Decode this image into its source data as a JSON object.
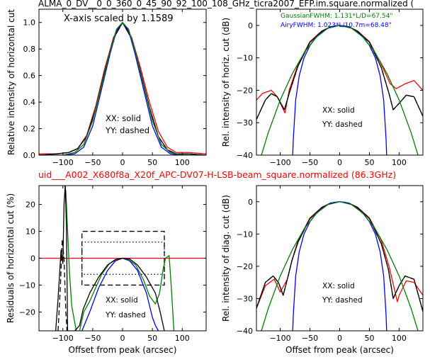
{
  "figure": {
    "top_title": "ALMA_0_DV__0_0_360_0_45_90_92_100_108_GHz_ticra2007_EFP.im.square.normalized (",
    "mid_title": "uid___A002_X680f8a_X20f_APC-DV07-H-LSB-beam_square.normalized (86.3GHz)",
    "mid_title_color": "#ff0000"
  },
  "colors": {
    "red": "#ff0000",
    "black": "#000000",
    "blue": "#0000ff",
    "green": "#008000"
  },
  "chart_data": [
    {
      "id": "p1",
      "type": "line",
      "xlim": [
        -140,
        140
      ],
      "ylim": [
        0,
        1.1
      ],
      "xticks": [
        -100,
        -50,
        0,
        50,
        100
      ],
      "xticklabels": [
        "−100",
        "−50",
        "0",
        "50",
        "100"
      ],
      "yticks": [
        0,
        0.2,
        0.4,
        0.6,
        0.8,
        1.0
      ],
      "yticklabels": [
        "0.0",
        "0.2",
        "0.4",
        "0.6",
        "0.8",
        "1.0"
      ],
      "xlabel": "",
      "ylabel": "Relative intensity of horizontal cut",
      "annotations": [
        "X-axis scaled by 1.1589",
        "XX: solid",
        "YY: dashed"
      ],
      "series": [
        {
          "color": "red",
          "style": "solid",
          "x": [
            -140,
            -110,
            -90,
            -75,
            -60,
            -45,
            -30,
            -15,
            0,
            15,
            30,
            45,
            60,
            75,
            90,
            110,
            140
          ],
          "y": [
            0.01,
            0.01,
            0.02,
            0.05,
            0.15,
            0.37,
            0.65,
            0.89,
            1.0,
            0.89,
            0.66,
            0.4,
            0.18,
            0.06,
            0.02,
            0.02,
            0.01
          ]
        },
        {
          "color": "black",
          "style": "solid",
          "x": [
            -140,
            -110,
            -90,
            -75,
            -60,
            -45,
            -30,
            -15,
            0,
            15,
            30,
            45,
            60,
            75,
            90,
            110,
            140
          ],
          "y": [
            0,
            0.01,
            0.02,
            0.05,
            0.14,
            0.35,
            0.63,
            0.88,
            1.0,
            0.88,
            0.63,
            0.36,
            0.14,
            0.04,
            0.01,
            0.01,
            0
          ]
        },
        {
          "color": "black",
          "style": "dashed",
          "x": [
            -140,
            -110,
            -90,
            -75,
            -60,
            -45,
            -30,
            -15,
            0,
            15,
            30,
            45,
            60,
            75,
            90,
            110,
            140
          ],
          "y": [
            0,
            0.01,
            0.02,
            0.05,
            0.14,
            0.35,
            0.63,
            0.88,
            1.0,
            0.88,
            0.63,
            0.36,
            0.14,
            0.04,
            0.01,
            0.01,
            0
          ]
        },
        {
          "color": "blue",
          "style": "solid",
          "x": [
            -140,
            -100,
            -80,
            -65,
            -50,
            -35,
            -20,
            -10,
            0,
            10,
            20,
            35,
            50,
            65,
            80,
            100,
            140
          ],
          "y": [
            0,
            0,
            0.01,
            0.06,
            0.22,
            0.5,
            0.78,
            0.94,
            1.0,
            0.94,
            0.78,
            0.5,
            0.22,
            0.06,
            0.01,
            0,
            0
          ]
        },
        {
          "color": "green",
          "style": "solid",
          "x": [
            -140,
            -100,
            -80,
            -65,
            -50,
            -35,
            -20,
            -10,
            0,
            10,
            20,
            35,
            50,
            65,
            80,
            100,
            140
          ],
          "y": [
            0,
            0,
            0.02,
            0.08,
            0.26,
            0.53,
            0.8,
            0.95,
            1.0,
            0.95,
            0.8,
            0.53,
            0.26,
            0.08,
            0.02,
            0,
            0
          ]
        }
      ]
    },
    {
      "id": "p2",
      "type": "line",
      "xlim": [
        -140,
        140
      ],
      "ylim": [
        -40,
        5
      ],
      "xticks": [
        -100,
        -50,
        0,
        50,
        100
      ],
      "xticklabels": [
        "−100",
        "−50",
        "0",
        "50",
        "100"
      ],
      "yticks": [
        -40,
        -30,
        -20,
        -10,
        0
      ],
      "yticklabels": [
        "−40",
        "−30",
        "−20",
        "−10",
        "0"
      ],
      "xlabel": "",
      "ylabel": "Rel. intensity of horiz. cut (dB)",
      "annotations": [
        "GaussianFWHM: 1.131*L/D=67.54\"",
        "AiryFWHM: 1.023*L/10.7m=68.48\"",
        "XX: solid",
        "YY: dashed"
      ],
      "annotation_colors": [
        "green",
        "blue",
        "black",
        "black"
      ],
      "series": [
        {
          "color": "red",
          "style": "solid",
          "x": [
            -140,
            -130,
            -115,
            -105,
            -92,
            -85,
            -70,
            -50,
            -30,
            -15,
            0,
            15,
            30,
            50,
            70,
            85,
            95,
            110,
            125,
            140
          ],
          "y": [
            -23,
            -21,
            -20,
            -22,
            -27,
            -20,
            -12,
            -5,
            -1.7,
            -0.4,
            0,
            -0.4,
            -1.7,
            -5,
            -12,
            -18,
            -19.5,
            -18,
            -17,
            -20
          ]
        },
        {
          "color": "black",
          "style": "solid",
          "x": [
            -140,
            -125,
            -115,
            -105,
            -93,
            -85,
            -70,
            -50,
            -30,
            -15,
            0,
            15,
            30,
            50,
            70,
            83,
            90,
            100,
            112,
            125,
            140
          ],
          "y": [
            -29,
            -23,
            -21,
            -22,
            -26,
            -21,
            -12.5,
            -5.2,
            -1.8,
            -0.4,
            0,
            -0.4,
            -1.8,
            -5.2,
            -13,
            -21,
            -26,
            -24,
            -21.5,
            -22,
            -28
          ]
        },
        {
          "color": "black",
          "style": "dashed",
          "x": [
            -140,
            -125,
            -115,
            -105,
            -93,
            -85,
            -70,
            -50,
            -30,
            -15,
            0,
            15,
            30,
            50,
            70,
            83,
            90,
            100,
            112,
            125,
            140
          ],
          "y": [
            -29,
            -23,
            -21,
            -22,
            -26,
            -21,
            -12.5,
            -5.2,
            -1.8,
            -0.4,
            0,
            -0.4,
            -1.8,
            -5.2,
            -13,
            -21,
            -26,
            -24,
            -21.5,
            -22,
            -28
          ]
        },
        {
          "color": "blue",
          "style": "solid",
          "x": [
            -80,
            -78,
            -74,
            -68,
            -60,
            -50,
            -40,
            -30,
            -20,
            -10,
            0,
            10,
            20,
            30,
            40,
            50,
            60,
            68,
            74,
            78,
            80
          ],
          "y": [
            -45,
            -35,
            -23,
            -15.5,
            -10,
            -6.2,
            -3.8,
            -2.1,
            -0.9,
            -0.2,
            0,
            -0.2,
            -0.9,
            -2.1,
            -3.8,
            -6.2,
            -10,
            -15.5,
            -23,
            -35,
            -45
          ]
        },
        {
          "color": "green",
          "style": "solid",
          "x": [
            -152,
            -140,
            -120,
            -100,
            -80,
            -60,
            -40,
            -20,
            0,
            20,
            40,
            60,
            80,
            100,
            120,
            140,
            152
          ],
          "y": [
            -50,
            -45,
            -33,
            -23,
            -15,
            -8.5,
            -3.7,
            -0.9,
            0,
            -0.9,
            -3.7,
            -8.5,
            -15,
            -23,
            -33,
            -45,
            -50
          ]
        }
      ]
    },
    {
      "id": "p3",
      "type": "line",
      "xlim": [
        -140,
        140
      ],
      "ylim": [
        -27,
        27
      ],
      "xticks": [
        -100,
        -50,
        0,
        50,
        100
      ],
      "xticklabels": [
        "−100",
        "−50",
        "0",
        "50",
        "100"
      ],
      "yticks": [
        -20,
        -10,
        0,
        10,
        20
      ],
      "yticklabels": [
        "−20",
        "−10",
        "0",
        "10",
        "20"
      ],
      "xlabel": "Offset from peak (arcsec)",
      "ylabel": "Residuals of horizontal cut (%)",
      "annotations": [
        "XX: solid",
        "YY: dashed"
      ],
      "series": [
        {
          "color": "red",
          "style": "solid",
          "x": [
            -140,
            140
          ],
          "y": [
            0,
            0
          ]
        },
        {
          "color": "black",
          "style": "dashed",
          "x": [
            -68,
            -68,
            70,
            70,
            -68
          ],
          "y": [
            -10,
            10,
            10,
            -10,
            -10
          ]
        },
        {
          "color": "black",
          "style": "dotted",
          "x": [
            -68,
            -68,
            70,
            70,
            -68
          ],
          "y": [
            -6,
            6,
            6,
            -6,
            -6
          ]
        },
        {
          "color": "blue",
          "style": "solid",
          "x": [
            -68,
            -55,
            -40,
            -25,
            -12,
            0,
            12,
            25,
            40,
            50,
            55,
            60
          ],
          "y": [
            -27,
            -20,
            -11,
            -4.5,
            -1,
            0,
            -1,
            -4.5,
            -13,
            -22,
            -25,
            -27
          ]
        },
        {
          "color": "green",
          "style": "solid",
          "x": [
            -97,
            -95,
            -92,
            -89,
            -85,
            -75,
            -65,
            -55,
            -45,
            -35,
            -22,
            -10,
            0,
            10,
            22,
            35,
            45,
            55,
            62,
            68,
            72,
            78,
            82,
            86
          ],
          "y": [
            27,
            25,
            10,
            -5,
            -18,
            -30,
            -20,
            -16,
            -11,
            -6,
            -2,
            -0.5,
            0,
            -0.5,
            -2.5,
            -8,
            -14,
            -17,
            -13,
            -4,
            0,
            1,
            -12,
            -27
          ]
        },
        {
          "color": "black",
          "style": "solid",
          "x": [
            -112,
            -108,
            -103,
            -100,
            -98,
            -96,
            -94,
            -92,
            -80,
            -72,
            -66,
            -55,
            -40,
            -25,
            -12,
            0,
            12,
            25,
            40,
            55,
            63,
            70
          ],
          "y": [
            -27,
            -15,
            3,
            -2,
            20,
            27,
            12,
            -27,
            -27,
            -25,
            -19,
            -13,
            -7,
            -2.5,
            -0.5,
            0,
            -0.3,
            -2.5,
            -7,
            -13,
            -20,
            -27
          ]
        },
        {
          "color": "black",
          "style": "dashed",
          "x": [
            -108,
            -104,
            -101,
            -98,
            -95,
            -93
          ],
          "y": [
            -27,
            -10,
            7,
            0,
            -20,
            -27
          ]
        }
      ]
    },
    {
      "id": "p4",
      "type": "line",
      "xlim": [
        -140,
        140
      ],
      "ylim": [
        -40,
        5
      ],
      "xticks": [
        -100,
        -50,
        0,
        50,
        100
      ],
      "xticklabels": [
        "−100",
        "−50",
        "0",
        "50",
        "100"
      ],
      "yticks": [
        -40,
        -30,
        -20,
        -10,
        0
      ],
      "yticklabels": [
        "−40",
        "−30",
        "−20",
        "−10",
        "0"
      ],
      "xlabel": "Offset from peak (arcsec)",
      "ylabel": "Rel. intensity of diag. cut (dB)",
      "annotations": [
        "XX: solid",
        "YY: dashed"
      ],
      "series": [
        {
          "color": "red",
          "style": "solid",
          "x": [
            -140,
            -125,
            -110,
            -100,
            -88,
            -80,
            -70,
            -50,
            -30,
            -15,
            0,
            15,
            30,
            50,
            70,
            83,
            97,
            100,
            112,
            125,
            140
          ],
          "y": [
            -33,
            -26,
            -24,
            -28,
            -24,
            -18,
            -12,
            -5,
            -1.7,
            -0.4,
            0,
            -0.4,
            -1.7,
            -5,
            -12,
            -20,
            -31,
            -29,
            -24.5,
            -25,
            -29
          ]
        },
        {
          "color": "black",
          "style": "solid",
          "x": [
            -140,
            -125,
            -112,
            -103,
            -95,
            -88,
            -80,
            -70,
            -50,
            -30,
            -15,
            0,
            15,
            30,
            50,
            70,
            82,
            90,
            100,
            110,
            125,
            140
          ],
          "y": [
            -33,
            -25,
            -23,
            -25,
            -29,
            -24,
            -18,
            -12.5,
            -5.2,
            -1.8,
            -0.4,
            0,
            -0.4,
            -1.8,
            -5.2,
            -13,
            -21,
            -30,
            -26,
            -23,
            -24,
            -34
          ]
        },
        {
          "color": "black",
          "style": "dashed",
          "x": [
            -140,
            -125,
            -112,
            -103,
            -95,
            -88,
            -80,
            -70,
            -50,
            -30,
            -15,
            0,
            15,
            30,
            50,
            70,
            82,
            90,
            100,
            110,
            125,
            140
          ],
          "y": [
            -33,
            -25,
            -23,
            -25,
            -29,
            -24,
            -18,
            -12.5,
            -5.2,
            -1.8,
            -0.4,
            0,
            -0.4,
            -1.8,
            -5.2,
            -13,
            -21,
            -30,
            -26,
            -23,
            -24,
            -34
          ]
        },
        {
          "color": "blue",
          "style": "solid",
          "x": [
            -80,
            -78,
            -74,
            -68,
            -60,
            -50,
            -40,
            -30,
            -20,
            -10,
            0,
            10,
            20,
            30,
            40,
            50,
            60,
            68,
            74,
            78,
            80
          ],
          "y": [
            -45,
            -35,
            -23,
            -15.5,
            -10,
            -6.2,
            -3.8,
            -2.1,
            -0.9,
            -0.2,
            0,
            -0.2,
            -0.9,
            -2.1,
            -3.8,
            -6.2,
            -10,
            -15.5,
            -23,
            -35,
            -45
          ]
        },
        {
          "color": "green",
          "style": "solid",
          "x": [
            -152,
            -140,
            -120,
            -100,
            -80,
            -60,
            -40,
            -20,
            0,
            20,
            40,
            60,
            80,
            100,
            120,
            140,
            152
          ],
          "y": [
            -50,
            -45,
            -33,
            -23,
            -15,
            -8.5,
            -3.7,
            -0.9,
            0,
            -0.9,
            -3.7,
            -8.5,
            -15,
            -23,
            -33,
            -45,
            -50
          ]
        }
      ]
    }
  ]
}
